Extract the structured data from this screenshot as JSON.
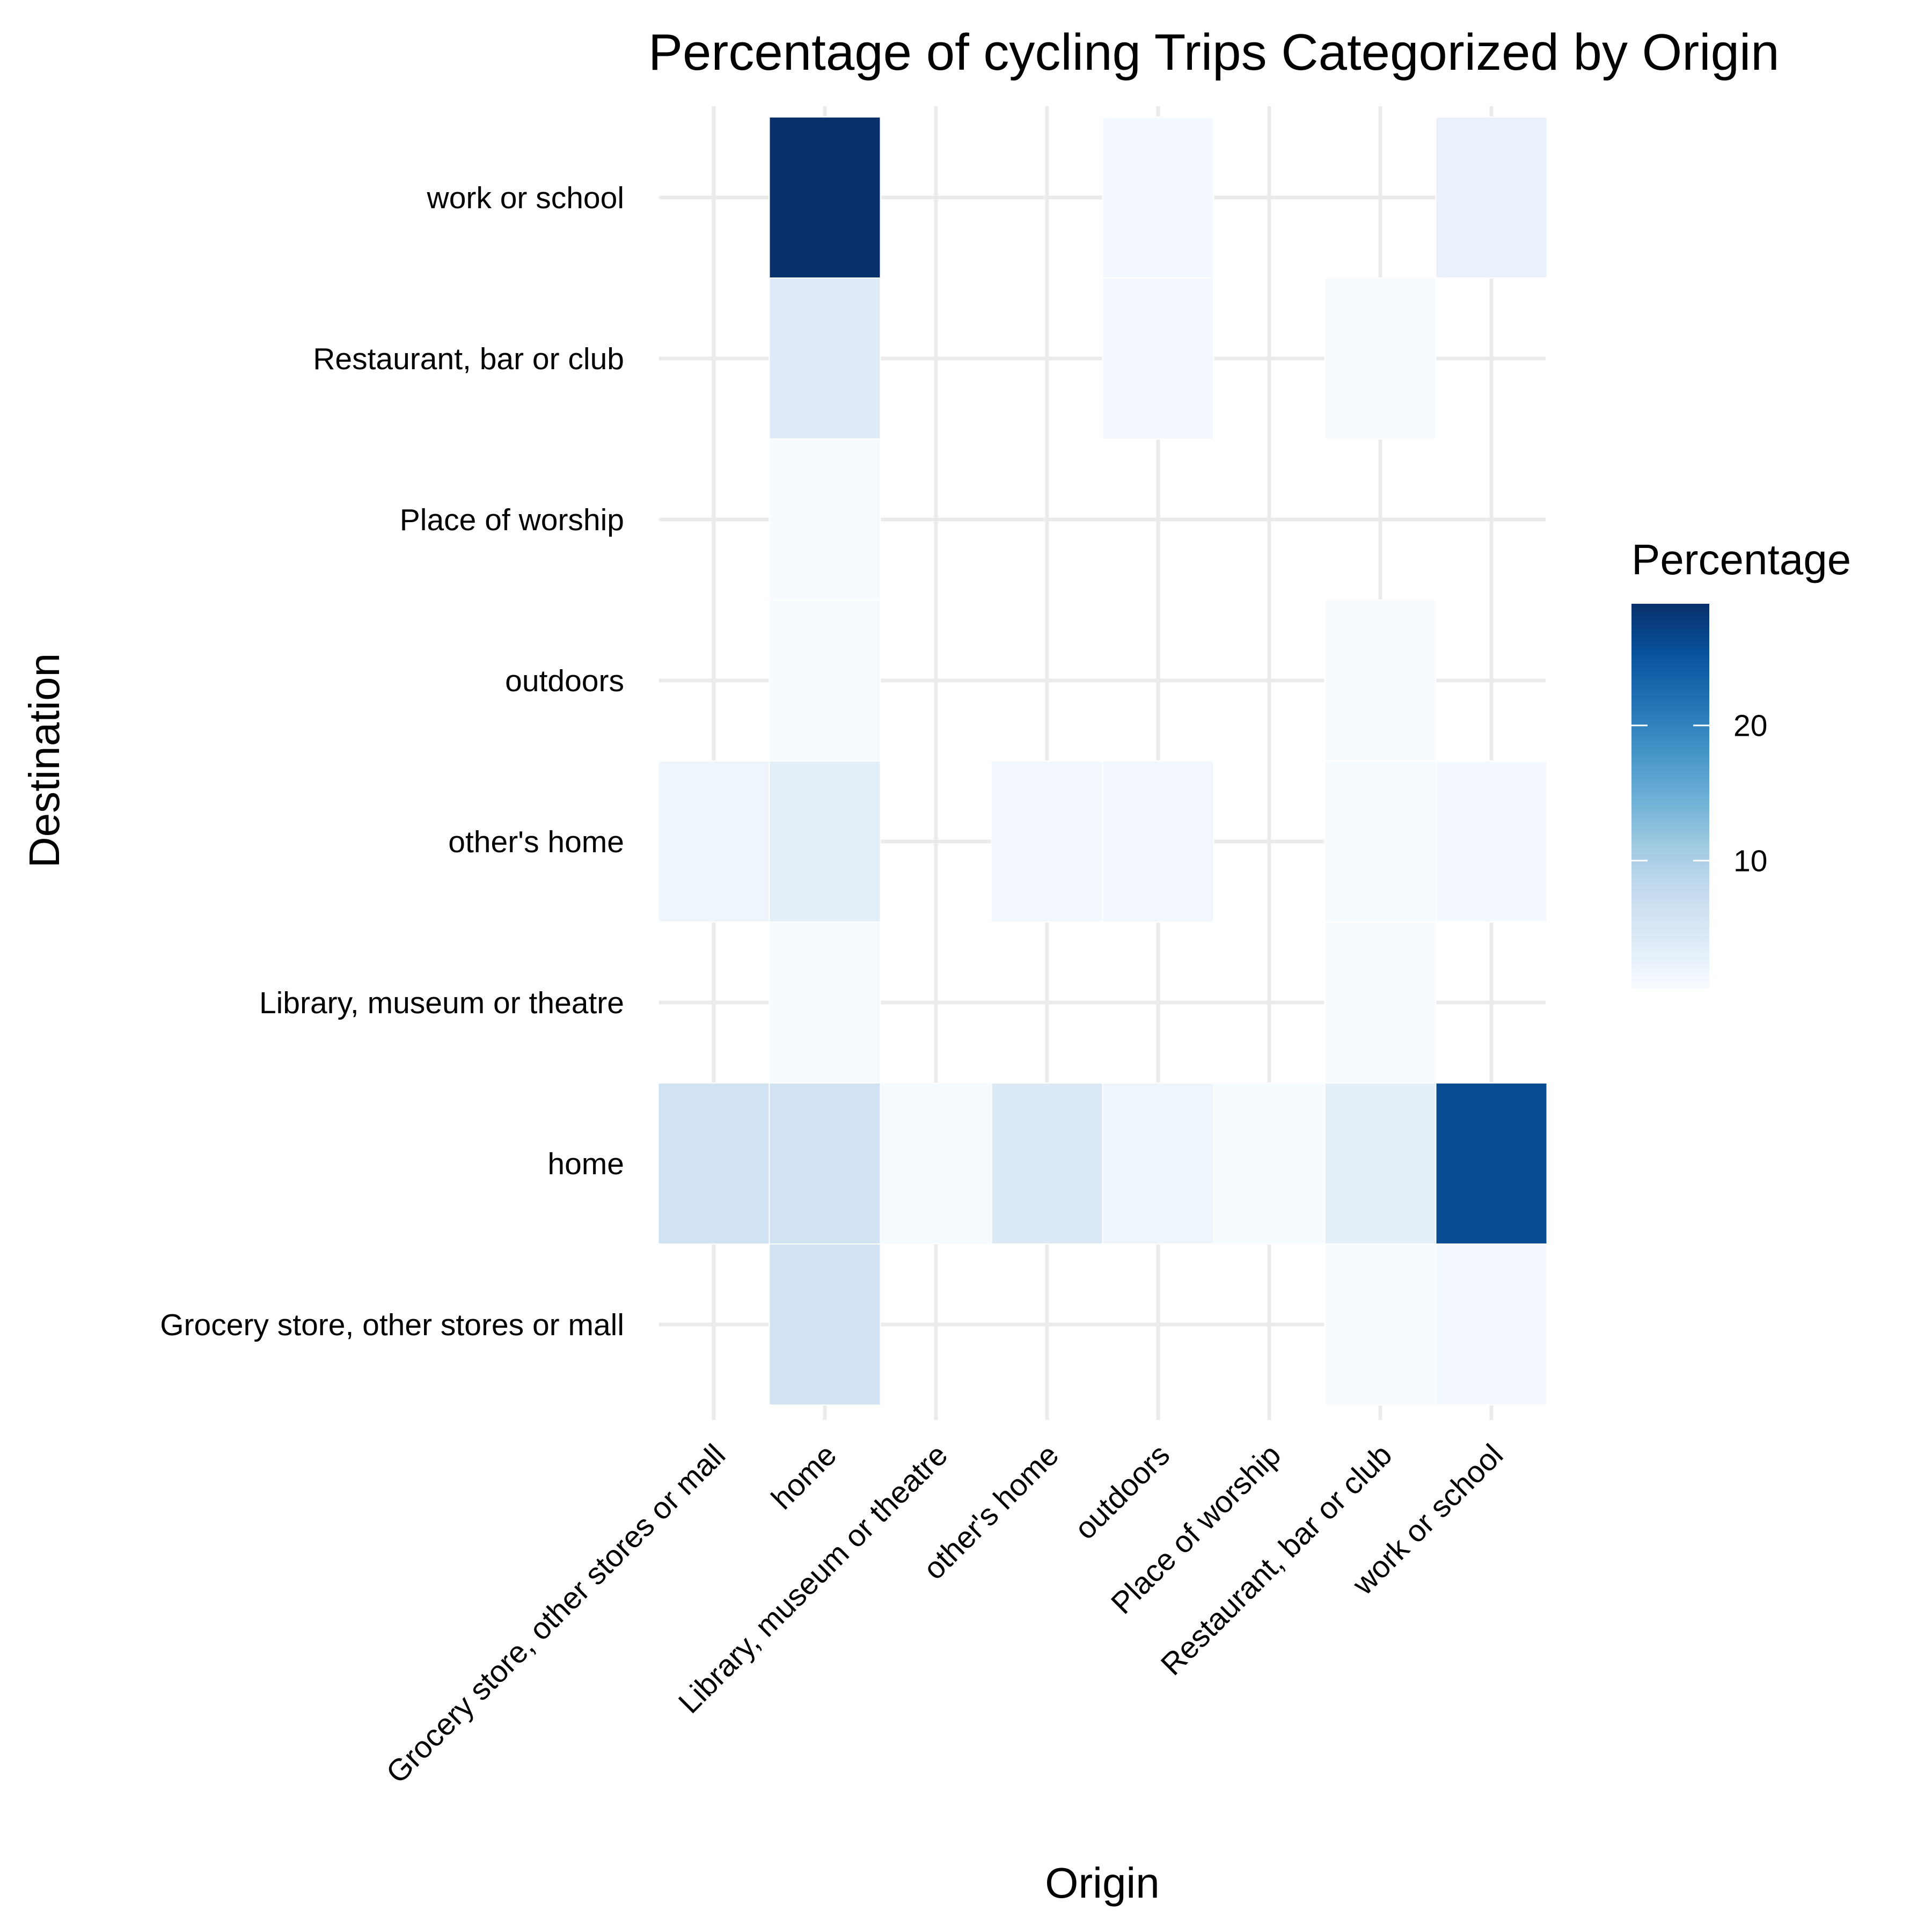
{
  "chart_data": {
    "type": "heatmap",
    "title": "Percentage of cycling Trips Categorized by Origin",
    "xlabel": "Origin",
    "ylabel": "Destination",
    "x_categories": [
      "Grocery store, other stores or mall",
      "home",
      "Library, museum or theatre",
      "other's home",
      "outdoors",
      "Place of worship",
      "Restaurant, bar or club",
      "work or school"
    ],
    "y_categories": [
      "Grocery store, other stores or mall",
      "home",
      "Library, museum or theatre",
      "other's home",
      "outdoors",
      "Place of worship",
      "Restaurant, bar or club",
      "work or school"
    ],
    "cells": [
      {
        "x": "home",
        "y": "work or school",
        "value": 29
      },
      {
        "x": "outdoors",
        "y": "work or school",
        "value": 1.0
      },
      {
        "x": "work or school",
        "y": "work or school",
        "value": 2.5
      },
      {
        "x": "home",
        "y": "Restaurant, bar or club",
        "value": 4.0
      },
      {
        "x": "outdoors",
        "y": "Restaurant, bar or club",
        "value": 1.2
      },
      {
        "x": "Restaurant, bar or club",
        "y": "Restaurant, bar or club",
        "value": 0.8
      },
      {
        "x": "home",
        "y": "Place of worship",
        "value": 0.5
      },
      {
        "x": "home",
        "y": "outdoors",
        "value": 0.5
      },
      {
        "x": "Restaurant, bar or club",
        "y": "outdoors",
        "value": 0.5
      },
      {
        "x": "Grocery store, other stores or mall",
        "y": "other's home",
        "value": 1.8
      },
      {
        "x": "home",
        "y": "other's home",
        "value": 3.5
      },
      {
        "x": "other's home",
        "y": "other's home",
        "value": 1.3
      },
      {
        "x": "outdoors",
        "y": "other's home",
        "value": 1.3
      },
      {
        "x": "Restaurant, bar or club",
        "y": "other's home",
        "value": 0.8
      },
      {
        "x": "work or school",
        "y": "other's home",
        "value": 1.0
      },
      {
        "x": "home",
        "y": "Library, museum or theatre",
        "value": 0.5
      },
      {
        "x": "Restaurant, bar or club",
        "y": "Library, museum or theatre",
        "value": 0.5
      },
      {
        "x": "Grocery store, other stores or mall",
        "y": "home",
        "value": 6.0
      },
      {
        "x": "home",
        "y": "home",
        "value": 6.0
      },
      {
        "x": "Library, museum or theatre",
        "y": "home",
        "value": 0.8
      },
      {
        "x": "other's home",
        "y": "home",
        "value": 4.5
      },
      {
        "x": "outdoors",
        "y": "home",
        "value": 1.8
      },
      {
        "x": "Place of worship",
        "y": "home",
        "value": 0.6
      },
      {
        "x": "Restaurant, bar or club",
        "y": "home",
        "value": 3.5
      },
      {
        "x": "work or school",
        "y": "home",
        "value": 26
      },
      {
        "x": "home",
        "y": "Grocery store, other stores or mall",
        "value": 6.0
      },
      {
        "x": "Restaurant, bar or club",
        "y": "Grocery store, other stores or mall",
        "value": 0.5
      },
      {
        "x": "work or school",
        "y": "Grocery store, other stores or mall",
        "value": 1.0
      }
    ],
    "colorbar": {
      "title": "Percentage",
      "min": 0.5,
      "max": 29,
      "ticks": [
        10,
        20
      ],
      "low_color": "#f7fbff",
      "high_color": "#08306b"
    },
    "legend_position": "right",
    "grid": true
  }
}
